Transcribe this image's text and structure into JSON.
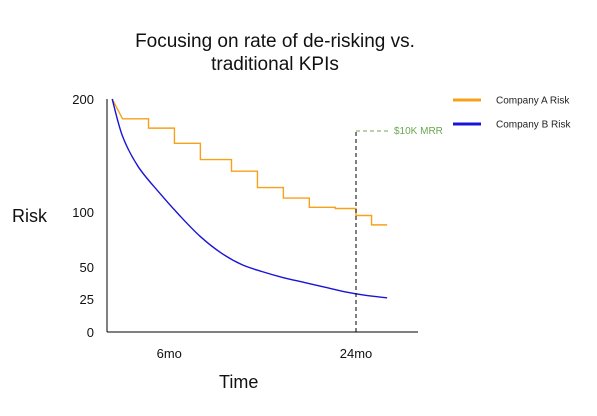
{
  "chart_data": {
    "type": "line",
    "title": "Focusing on rate of de-risking vs. traditional KPIs",
    "title_lines": [
      "Focusing on rate of de-risking vs.",
      "traditional KPIs"
    ],
    "xlabel": "Time",
    "ylabel": "Risk",
    "x_ticks": [
      {
        "label": "6mo",
        "x": 6
      },
      {
        "label": "24mo",
        "x": 24
      }
    ],
    "y_ticks": [
      {
        "label": "200",
        "y": 200
      },
      {
        "label": "100",
        "y": 100
      },
      {
        "label": "50",
        "y": 50
      },
      {
        "label": "25",
        "y": 25
      },
      {
        "label": "0",
        "y": 0
      }
    ],
    "y_tick_positions": [
      200,
      103,
      56,
      29,
      0
    ],
    "xlim": [
      0,
      30
    ],
    "ylim": [
      0,
      200
    ],
    "grid": false,
    "legend_position": "top-right",
    "annotation": {
      "label": "$10K MRR",
      "x": 24,
      "y": 170,
      "color": "#6aa84f"
    },
    "series": [
      {
        "name": "Company A Risk",
        "color": "#f7a11a",
        "style": "step",
        "points": [
          [
            0.5,
            200
          ],
          [
            1.5,
            183
          ],
          [
            4,
            183
          ],
          [
            4,
            175
          ],
          [
            6.5,
            175
          ],
          [
            6.5,
            162
          ],
          [
            9,
            162
          ],
          [
            9,
            148
          ],
          [
            12,
            148
          ],
          [
            12,
            138
          ],
          [
            14.5,
            138
          ],
          [
            14.5,
            124
          ],
          [
            17,
            124
          ],
          [
            17,
            115
          ],
          [
            19.5,
            115
          ],
          [
            19.5,
            107
          ],
          [
            22,
            107
          ],
          [
            22,
            106
          ],
          [
            24,
            106
          ],
          [
            24,
            100
          ],
          [
            25.5,
            100
          ],
          [
            25.5,
            92
          ],
          [
            27,
            92
          ]
        ]
      },
      {
        "name": "Company B Risk",
        "color": "#1a14d6",
        "style": "smooth",
        "points": [
          [
            0.5,
            200
          ],
          [
            1.5,
            168
          ],
          [
            3,
            142
          ],
          [
            5,
            120
          ],
          [
            7,
            100
          ],
          [
            9,
            82
          ],
          [
            11,
            68
          ],
          [
            13,
            58
          ],
          [
            15,
            52
          ],
          [
            17,
            47
          ],
          [
            19,
            43
          ],
          [
            21,
            39
          ],
          [
            23,
            35
          ],
          [
            25,
            32
          ],
          [
            27,
            30
          ]
        ]
      }
    ]
  }
}
